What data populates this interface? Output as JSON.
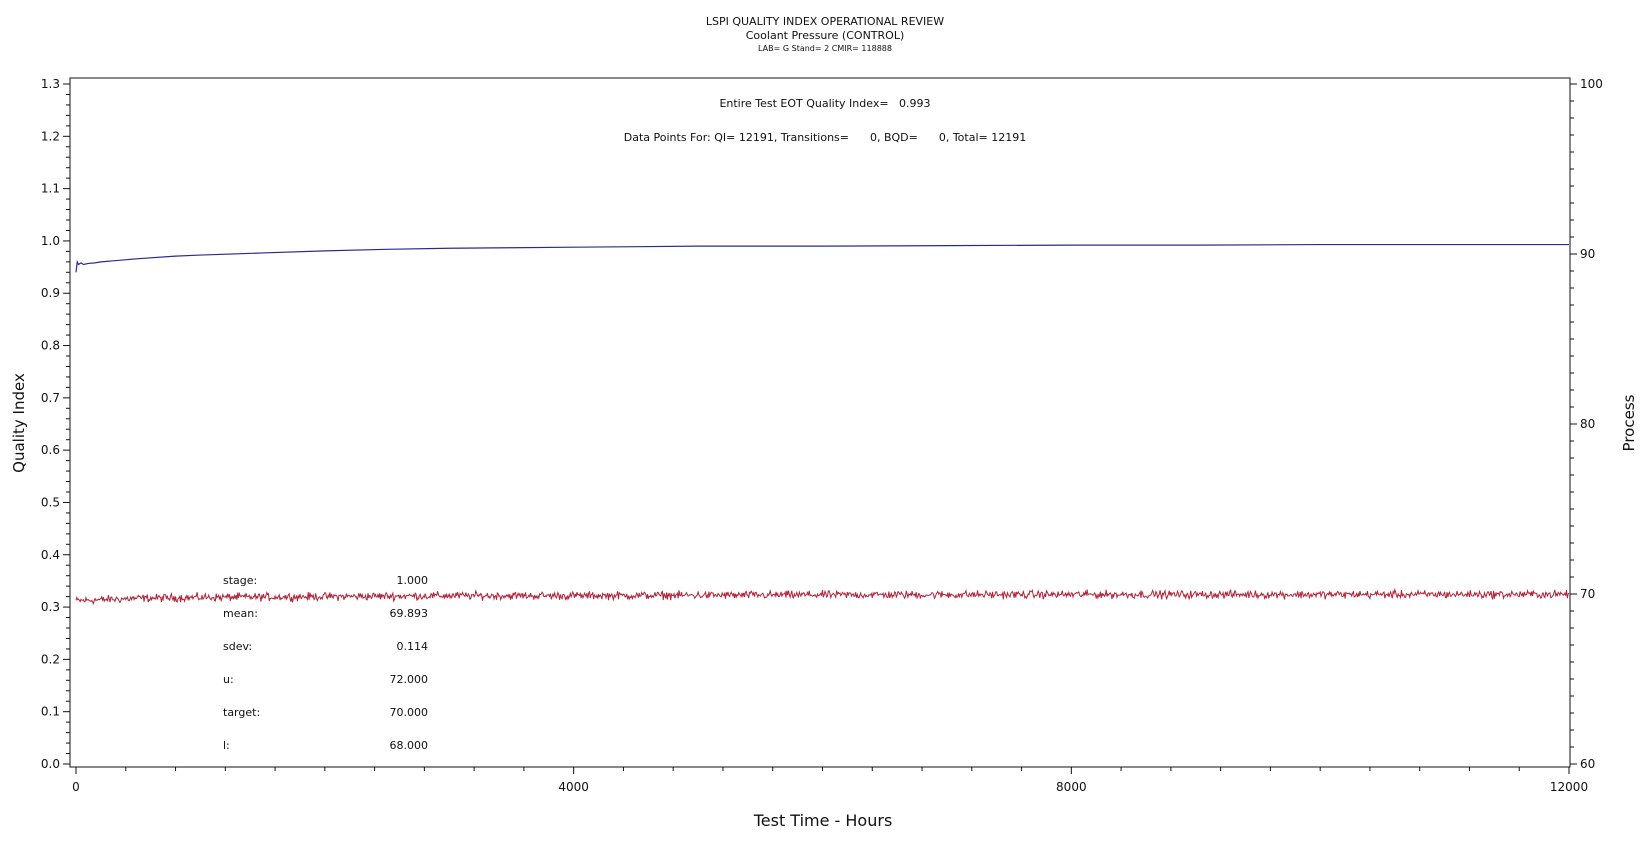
{
  "chart_data": {
    "type": "line",
    "title": "LSPI QUALITY INDEX OPERATIONAL REVIEW",
    "subtitle": "Coolant Pressure (CONTROL)",
    "subtitle2": "LAB= G Stand= 2 CMIR= 118888",
    "xlabel": "Test Time - Hours",
    "ylabel": "Quality Index",
    "y2label": "Process",
    "xlim": [
      0,
      12000
    ],
    "ylim": [
      0,
      1.3
    ],
    "y2lim": [
      60,
      100
    ],
    "x_ticks": [
      "0",
      "4000",
      "8000",
      "12000"
    ],
    "y_ticks": [
      "0.0",
      "0.1",
      "0.2",
      "0.3",
      "0.4",
      "0.5",
      "0.6",
      "0.7",
      "0.8",
      "0.9",
      "1.0",
      "1.1",
      "1.2",
      "1.3"
    ],
    "y2_ticks": [
      "60",
      "70",
      "80",
      "90",
      "100"
    ],
    "grid": false,
    "annotations": {
      "eot": "Entire Test EOT Quality Index=   0.993",
      "points": "Data Points For: QI= 12191, Transitions=      0, BQD=      0, Total= 12191"
    },
    "stats": [
      {
        "label": "stage:",
        "value": "1.000"
      },
      {
        "label": "mean:",
        "value": "69.893"
      },
      {
        "label": "sdev:",
        "value": "0.114"
      },
      {
        "label": "u:",
        "value": "72.000"
      },
      {
        "label": "target:",
        "value": "70.000"
      },
      {
        "label": "l:",
        "value": "68.000"
      }
    ],
    "series": [
      {
        "axis": "left",
        "color": "#2b2b8f",
        "x": [
          0,
          10,
          20,
          40,
          60,
          100,
          150,
          200,
          300,
          500,
          800,
          1000,
          1500,
          2000,
          2500,
          3000,
          3500,
          4000,
          4500,
          5000,
          6000,
          7000,
          8000,
          9000,
          10000,
          11000,
          12000
        ],
        "y": [
          0.94,
          0.96,
          0.955,
          0.958,
          0.955,
          0.957,
          0.958,
          0.96,
          0.962,
          0.966,
          0.971,
          0.973,
          0.977,
          0.981,
          0.984,
          0.986,
          0.987,
          0.988,
          0.989,
          0.99,
          0.99,
          0.991,
          0.992,
          0.992,
          0.993,
          0.993,
          0.993
        ]
      },
      {
        "axis": "right",
        "color": "#b0243a",
        "noise_sdev": 0.114,
        "x": [
          0,
          500,
          1000,
          2000,
          3000,
          4000,
          6000,
          8000,
          10000,
          12000
        ],
        "y": [
          69.6,
          69.75,
          69.8,
          69.85,
          69.9,
          69.9,
          69.95,
          69.97,
          69.97,
          69.98
        ]
      }
    ]
  }
}
